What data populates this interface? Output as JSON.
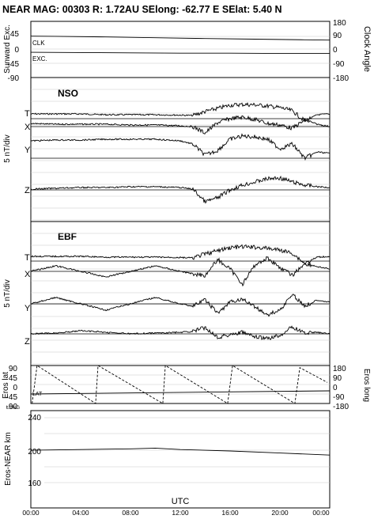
{
  "header": {
    "title": "NEAR MAG: 00303  R: 1.72AU  SElong:  -62.77 E  SElat:    5.40 N"
  },
  "chart_data": {
    "x_axis": {
      "label": "UTC",
      "ticks": [
        "00:00",
        "04:00",
        "08:00",
        "12:00",
        "16:00",
        "20:00",
        "00:00"
      ],
      "range_hours": [
        0,
        24
      ]
    },
    "panels": [
      {
        "id": "angles",
        "type": "line",
        "left_label": "Sunward Exc.",
        "right_label": "Clock Angle",
        "left_ticks": [
          "45",
          "0",
          "-45",
          "-90"
        ],
        "right_ticks": [
          "180",
          "90",
          "0",
          "-90",
          "-180"
        ],
        "left_range": [
          -90,
          90
        ],
        "right_range": [
          -180,
          180
        ],
        "series": [
          {
            "name": "CLK",
            "axis": "right",
            "x": [
              0,
              2,
              6,
              10,
              14,
              18,
              22,
              24
            ],
            "y": [
              85,
              84,
              80,
              75,
              70,
              66,
              62,
              60
            ]
          },
          {
            "name": "EXC.",
            "axis": "left",
            "x": [
              0,
              4,
              8,
              12,
              16,
              20,
              24
            ],
            "y": [
              -9,
              -10,
              -11,
              -12,
              -12,
              -13,
              -13
            ]
          }
        ]
      },
      {
        "id": "nso",
        "type": "line",
        "panel_title": "NSO",
        "left_label": "5 nT/div",
        "series": [
          {
            "name": "T",
            "x": [
              0,
              2,
              4,
              6,
              8,
              10,
              12,
              13,
              14,
              15,
              16,
              17,
              18,
              19,
              20,
              21,
              22,
              23,
              24
            ],
            "y": [
              0.6,
              0.6,
              0.6,
              0.5,
              0.5,
              0.5,
              0.45,
              0.4,
              0.9,
              1.3,
              1.7,
              1.8,
              1.75,
              1.6,
              1.4,
              1.0,
              -0.3,
              0.5,
              0.6
            ]
          },
          {
            "name": "X",
            "x": [
              0,
              2,
              4,
              6,
              8,
              10,
              12,
              13,
              14,
              15,
              16,
              17,
              18,
              19,
              20,
              21,
              22,
              23,
              24
            ],
            "y": [
              0.4,
              0.3,
              0.3,
              0.3,
              0.2,
              0.2,
              0.1,
              0.0,
              -0.8,
              0.5,
              1.0,
              1.2,
              0.9,
              0.4,
              0.2,
              -0.2,
              0.8,
              0.3,
              0.0
            ]
          },
          {
            "name": "Y",
            "x": [
              0,
              2,
              4,
              6,
              8,
              10,
              12,
              13,
              14,
              15,
              16,
              17,
              18,
              19,
              20,
              21,
              22,
              23,
              24
            ],
            "y": [
              2.2,
              2.3,
              2.3,
              2.4,
              2.4,
              2.4,
              2.2,
              1.8,
              0.4,
              1.0,
              2.4,
              2.8,
              2.7,
              2.4,
              1.2,
              1.8,
              0.0,
              0.8,
              0.6
            ]
          },
          {
            "name": "Z",
            "x": [
              0,
              2,
              4,
              6,
              8,
              10,
              12,
              13,
              14,
              15,
              16,
              17,
              18,
              19,
              20,
              21,
              22,
              23,
              24
            ],
            "y": [
              0.1,
              0.2,
              0.3,
              0.3,
              0.4,
              0.4,
              0.3,
              0.1,
              -1.5,
              -1.0,
              0.0,
              0.6,
              1.0,
              1.4,
              1.5,
              1.0,
              0.6,
              0.4,
              0.3
            ]
          }
        ]
      },
      {
        "id": "ebf",
        "type": "line",
        "panel_title": "EBF",
        "left_label": "5 nT/div",
        "series": [
          {
            "name": "T",
            "x": [
              0,
              2,
              4,
              6,
              8,
              10,
              12,
              13,
              14,
              15,
              16,
              17,
              18,
              19,
              20,
              21,
              22,
              23,
              24
            ],
            "y": [
              0.6,
              0.6,
              0.6,
              0.5,
              0.5,
              0.5,
              0.45,
              0.4,
              0.9,
              1.3,
              1.7,
              1.8,
              1.75,
              1.6,
              1.4,
              1.0,
              -0.3,
              0.5,
              0.6
            ]
          },
          {
            "name": "X",
            "x": [
              0,
              2,
              4,
              6,
              8,
              10,
              12,
              13,
              14,
              15,
              16,
              17,
              18,
              19,
              20,
              21,
              22,
              23,
              24
            ],
            "y": [
              0.0,
              0.7,
              0.0,
              -0.7,
              0.0,
              0.7,
              0.0,
              -0.3,
              -0.5,
              1.5,
              0.3,
              -1.6,
              0.8,
              1.7,
              0.5,
              -0.5,
              1.0,
              0.6,
              0.3
            ]
          },
          {
            "name": "Y",
            "x": [
              0,
              2,
              4,
              6,
              8,
              10,
              12,
              13,
              14,
              15,
              16,
              17,
              18,
              19,
              20,
              21,
              22,
              23,
              24
            ],
            "y": [
              0.0,
              0.8,
              0.0,
              -0.8,
              0.0,
              0.8,
              0.0,
              -0.3,
              0.5,
              -1.2,
              0.2,
              0.6,
              -0.4,
              -1.4,
              -0.8,
              1.2,
              -0.3,
              0.5,
              0.2
            ]
          },
          {
            "name": "Z",
            "x": [
              0,
              2,
              4,
              6,
              8,
              10,
              12,
              13,
              14,
              15,
              16,
              17,
              18,
              19,
              20,
              21,
              22,
              23,
              24
            ],
            "y": [
              0.0,
              0.1,
              0.4,
              0.2,
              0.0,
              0.1,
              0.2,
              0.3,
              0.8,
              -0.4,
              -0.1,
              0.2,
              -0.4,
              -0.6,
              -0.2,
              0.9,
              0.1,
              0.2,
              0.0
            ]
          }
        ]
      },
      {
        "id": "eros",
        "type": "line",
        "left_label": "Eros lat",
        "right_label": "Eros long",
        "left_ticks": [
          "90",
          "45",
          "0",
          "-45",
          "-90"
        ],
        "right_ticks": [
          "180",
          "90",
          "0",
          "-90",
          "-180"
        ],
        "left_range": [
          -90,
          90
        ],
        "right_range": [
          -180,
          180
        ],
        "series": [
          {
            "name": "LAT",
            "axis": "left",
            "x": [
              0,
              24
            ],
            "y": [
              -45,
              -30
            ]
          },
          {
            "name": "LONG",
            "axis": "right",
            "x": [
              0.1,
              0.5,
              5.2,
              5.4,
              10.6,
              10.8,
              15.8,
              16.2,
              21.2,
              21.6,
              23.8
            ],
            "y": [
              -180,
              180,
              -180,
              180,
              -180,
              180,
              -180,
              180,
              -180,
              160,
              20
            ]
          }
        ]
      },
      {
        "id": "range",
        "type": "line",
        "left_label": "Eros-NEAR km",
        "left_ticks": [
          "240",
          "200",
          "160"
        ],
        "left_range": [
          120,
          260
        ],
        "series": [
          {
            "name": "Eros-NEAR km",
            "x": [
              0,
              4,
              8,
              10,
              12,
              16,
              20,
              24
            ],
            "y": [
              203,
              204,
              205,
              206,
              204,
              202,
              199,
              196
            ]
          }
        ]
      }
    ]
  }
}
